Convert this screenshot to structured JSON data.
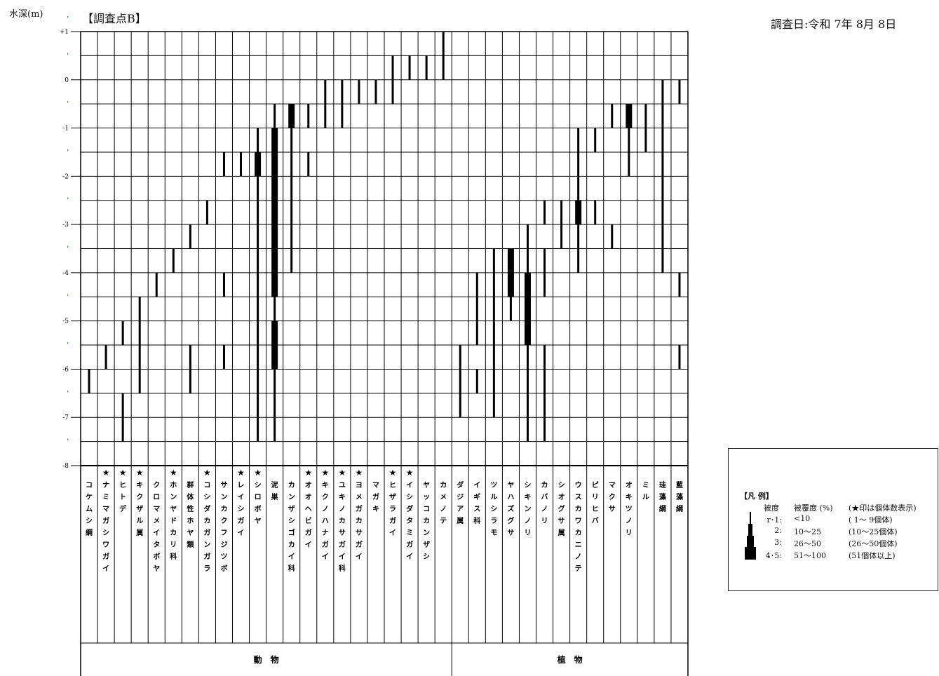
{
  "header": {
    "depth_unit_label": "水深(m)",
    "site_label": "【調査点B】",
    "survey_date": "調査日:令和 7年 8月 8日"
  },
  "chart_data": {
    "type": "table",
    "y_axis": {
      "label": "水深(m)",
      "range": [
        -8,
        1
      ],
      "tick_values": [
        1,
        0,
        -1,
        -2,
        -3,
        -4,
        -5,
        -6,
        -7,
        -8
      ],
      "tick_labels": [
        "+1",
        "0",
        "-1",
        "-2",
        "-3",
        "-4",
        "-5",
        "-6",
        "-7",
        "-8"
      ],
      "half_marks": [
        "'",
        "'",
        "'",
        "'",
        "'",
        "'",
        "'",
        "'",
        "'"
      ],
      "step": 0.5,
      "grid": true
    },
    "groups": [
      {
        "label": "動　物",
        "columns": [
          0,
          21
        ]
      },
      {
        "label": "植　物",
        "columns": [
          22,
          35
        ]
      }
    ],
    "columns": [
      {
        "name": "コケムシ綱",
        "star": false
      },
      {
        "name": "ナミマガシワガイ",
        "star": true
      },
      {
        "name": "ヒトデ",
        "star": true
      },
      {
        "name": "キクザル属",
        "star": true
      },
      {
        "name": "クロマメイタボヤ",
        "star": false
      },
      {
        "name": "ホンヤドカリ科",
        "star": true
      },
      {
        "name": "群体性ホヤ類",
        "star": false
      },
      {
        "name": "コシダカガンガラ",
        "star": true
      },
      {
        "name": "サンカクフジツボ",
        "star": false
      },
      {
        "name": "レイシガイ",
        "star": true
      },
      {
        "name": "シロボヤ",
        "star": true
      },
      {
        "name": "泥巣",
        "star": false
      },
      {
        "name": "カンザシゴカイ科",
        "star": false
      },
      {
        "name": "オオヘビガイ",
        "star": true
      },
      {
        "name": "キクノハナガイ",
        "star": true
      },
      {
        "name": "ユキノカサガイ科",
        "star": true
      },
      {
        "name": "ヨメガカサガイ",
        "star": true
      },
      {
        "name": "マガキ",
        "star": false
      },
      {
        "name": "ヒザラガイ",
        "star": true
      },
      {
        "name": "イシダタミガイ",
        "star": true
      },
      {
        "name": "ヤッコカンザシ",
        "star": false
      },
      {
        "name": "カメノテ",
        "star": false
      },
      {
        "name": "ダジア属",
        "star": false
      },
      {
        "name": "イギス科",
        "star": false
      },
      {
        "name": "ツルシラモ",
        "star": false
      },
      {
        "name": "ヤハズグサ",
        "star": false
      },
      {
        "name": "シキンノリ",
        "star": false
      },
      {
        "name": "カバノリ",
        "star": false
      },
      {
        "name": "シオグサ属",
        "star": false
      },
      {
        "name": "ウスカワカニノテ",
        "star": false
      },
      {
        "name": "ピリヒバ",
        "star": false
      },
      {
        "name": "マクサ",
        "star": false
      },
      {
        "name": "オキツノリ",
        "star": false
      },
      {
        "name": "ミル",
        "star": false
      },
      {
        "name": "珪藻綱",
        "star": false
      },
      {
        "name": "藍藻綱",
        "star": false
      }
    ],
    "series": [
      {
        "column": 0,
        "segments": [
          [
            -6.0,
            -6.5,
            1
          ]
        ]
      },
      {
        "column": 1,
        "segments": [
          [
            -5.5,
            -6.0,
            1
          ]
        ]
      },
      {
        "column": 2,
        "segments": [
          [
            -5.0,
            -5.5,
            1
          ],
          [
            -6.5,
            -7.5,
            1
          ]
        ]
      },
      {
        "column": 3,
        "segments": [
          [
            -4.5,
            -6.5,
            1
          ]
        ]
      },
      {
        "column": 4,
        "segments": [
          [
            -4.0,
            -4.5,
            1
          ]
        ]
      },
      {
        "column": 5,
        "segments": [
          [
            -3.5,
            -4.0,
            1
          ]
        ]
      },
      {
        "column": 6,
        "segments": [
          [
            -3.0,
            -3.5,
            1
          ],
          [
            -5.5,
            -6.5,
            1
          ]
        ]
      },
      {
        "column": 7,
        "segments": [
          [
            -2.5,
            -3.0,
            1
          ]
        ]
      },
      {
        "column": 8,
        "segments": [
          [
            -1.5,
            -2.0,
            1
          ],
          [
            -4.0,
            -4.5,
            1
          ],
          [
            -5.5,
            -6.0,
            1
          ]
        ]
      },
      {
        "column": 9,
        "segments": [
          [
            -1.5,
            -2.0,
            1
          ]
        ]
      },
      {
        "column": 10,
        "segments": [
          [
            -1.0,
            -1.5,
            1
          ],
          [
            -1.5,
            -2.0,
            3
          ],
          [
            -2.0,
            -7.5,
            1
          ]
        ]
      },
      {
        "column": 11,
        "segments": [
          [
            -0.5,
            -1.0,
            1
          ],
          [
            -1.0,
            -4.5,
            3
          ],
          [
            -4.5,
            -5.0,
            1
          ],
          [
            -5.0,
            -6.0,
            3
          ],
          [
            -6.0,
            -7.5,
            1
          ]
        ]
      },
      {
        "column": 12,
        "segments": [
          [
            -0.5,
            -1.0,
            3
          ],
          [
            -1.0,
            -4.0,
            1
          ]
        ]
      },
      {
        "column": 13,
        "segments": [
          [
            -0.5,
            -1.0,
            1
          ],
          [
            -1.5,
            -2.0,
            1
          ]
        ]
      },
      {
        "column": 14,
        "segments": [
          [
            0.0,
            -1.0,
            1
          ]
        ]
      },
      {
        "column": 15,
        "segments": [
          [
            0.0,
            -1.0,
            1
          ]
        ]
      },
      {
        "column": 16,
        "segments": [
          [
            0.0,
            -0.5,
            1
          ]
        ]
      },
      {
        "column": 17,
        "segments": [
          [
            0.0,
            -0.5,
            1
          ]
        ]
      },
      {
        "column": 18,
        "segments": [
          [
            0.5,
            -0.5,
            1
          ]
        ]
      },
      {
        "column": 19,
        "segments": [
          [
            0.5,
            0.0,
            1
          ]
        ]
      },
      {
        "column": 20,
        "segments": [
          [
            0.5,
            0.0,
            1
          ]
        ]
      },
      {
        "column": 21,
        "segments": [
          [
            1.0,
            0.0,
            1
          ]
        ]
      },
      {
        "column": 22,
        "segments": [
          [
            -5.5,
            -7.0,
            1
          ]
        ]
      },
      {
        "column": 23,
        "segments": [
          [
            -4.0,
            -5.5,
            1
          ],
          [
            -6.0,
            -6.5,
            1
          ]
        ]
      },
      {
        "column": 24,
        "segments": [
          [
            -3.5,
            -7.0,
            1
          ]
        ]
      },
      {
        "column": 25,
        "segments": [
          [
            -3.5,
            -4.5,
            3
          ],
          [
            -4.5,
            -5.0,
            1
          ]
        ]
      },
      {
        "column": 26,
        "segments": [
          [
            -3.0,
            -4.0,
            1
          ],
          [
            -4.0,
            -5.5,
            3
          ],
          [
            -5.5,
            -7.0,
            1
          ],
          [
            -7.0,
            -7.5,
            1
          ]
        ]
      },
      {
        "column": 27,
        "segments": [
          [
            -2.5,
            -3.0,
            1
          ],
          [
            -3.5,
            -4.5,
            1
          ],
          [
            -5.5,
            -7.5,
            1
          ]
        ]
      },
      {
        "column": 28,
        "segments": [
          [
            -2.5,
            -3.5,
            1
          ]
        ]
      },
      {
        "column": 29,
        "segments": [
          [
            -1.0,
            -2.5,
            1
          ],
          [
            -2.5,
            -3.0,
            3
          ],
          [
            -3.0,
            -4.0,
            1
          ]
        ]
      },
      {
        "column": 30,
        "segments": [
          [
            -1.0,
            -1.5,
            1
          ],
          [
            -2.5,
            -3.0,
            1
          ]
        ]
      },
      {
        "column": 31,
        "segments": [
          [
            -0.5,
            -1.0,
            1
          ],
          [
            -3.0,
            -3.5,
            1
          ]
        ]
      },
      {
        "column": 32,
        "segments": [
          [
            -0.5,
            -1.0,
            3
          ],
          [
            -1.0,
            -2.0,
            1
          ]
        ]
      },
      {
        "column": 33,
        "segments": [
          [
            -0.5,
            -1.5,
            1
          ]
        ]
      },
      {
        "column": 34,
        "segments": [
          [
            0.0,
            -4.0,
            1
          ]
        ]
      },
      {
        "column": 35,
        "segments": [
          [
            0.0,
            -0.5,
            1
          ],
          [
            -4.0,
            -4.5,
            1
          ],
          [
            -5.5,
            -6.0,
            1
          ]
        ]
      }
    ],
    "legend": {
      "title": "【凡 例】",
      "header": [
        "被度",
        "被覆度 (%)",
        "(★印は個体数表示)"
      ],
      "rows": [
        {
          "grade": "r･1:",
          "cover": "<10",
          "count": "( 1～ 9個体)"
        },
        {
          "grade": "2:",
          "cover": "10～25",
          "count": "(10～25個体)"
        },
        {
          "grade": "3:",
          "cover": "26～50",
          "count": "(26～50個体)"
        },
        {
          "grade": "4･5:",
          "cover": "51～100",
          "count": "(51個体以上)"
        }
      ]
    }
  }
}
